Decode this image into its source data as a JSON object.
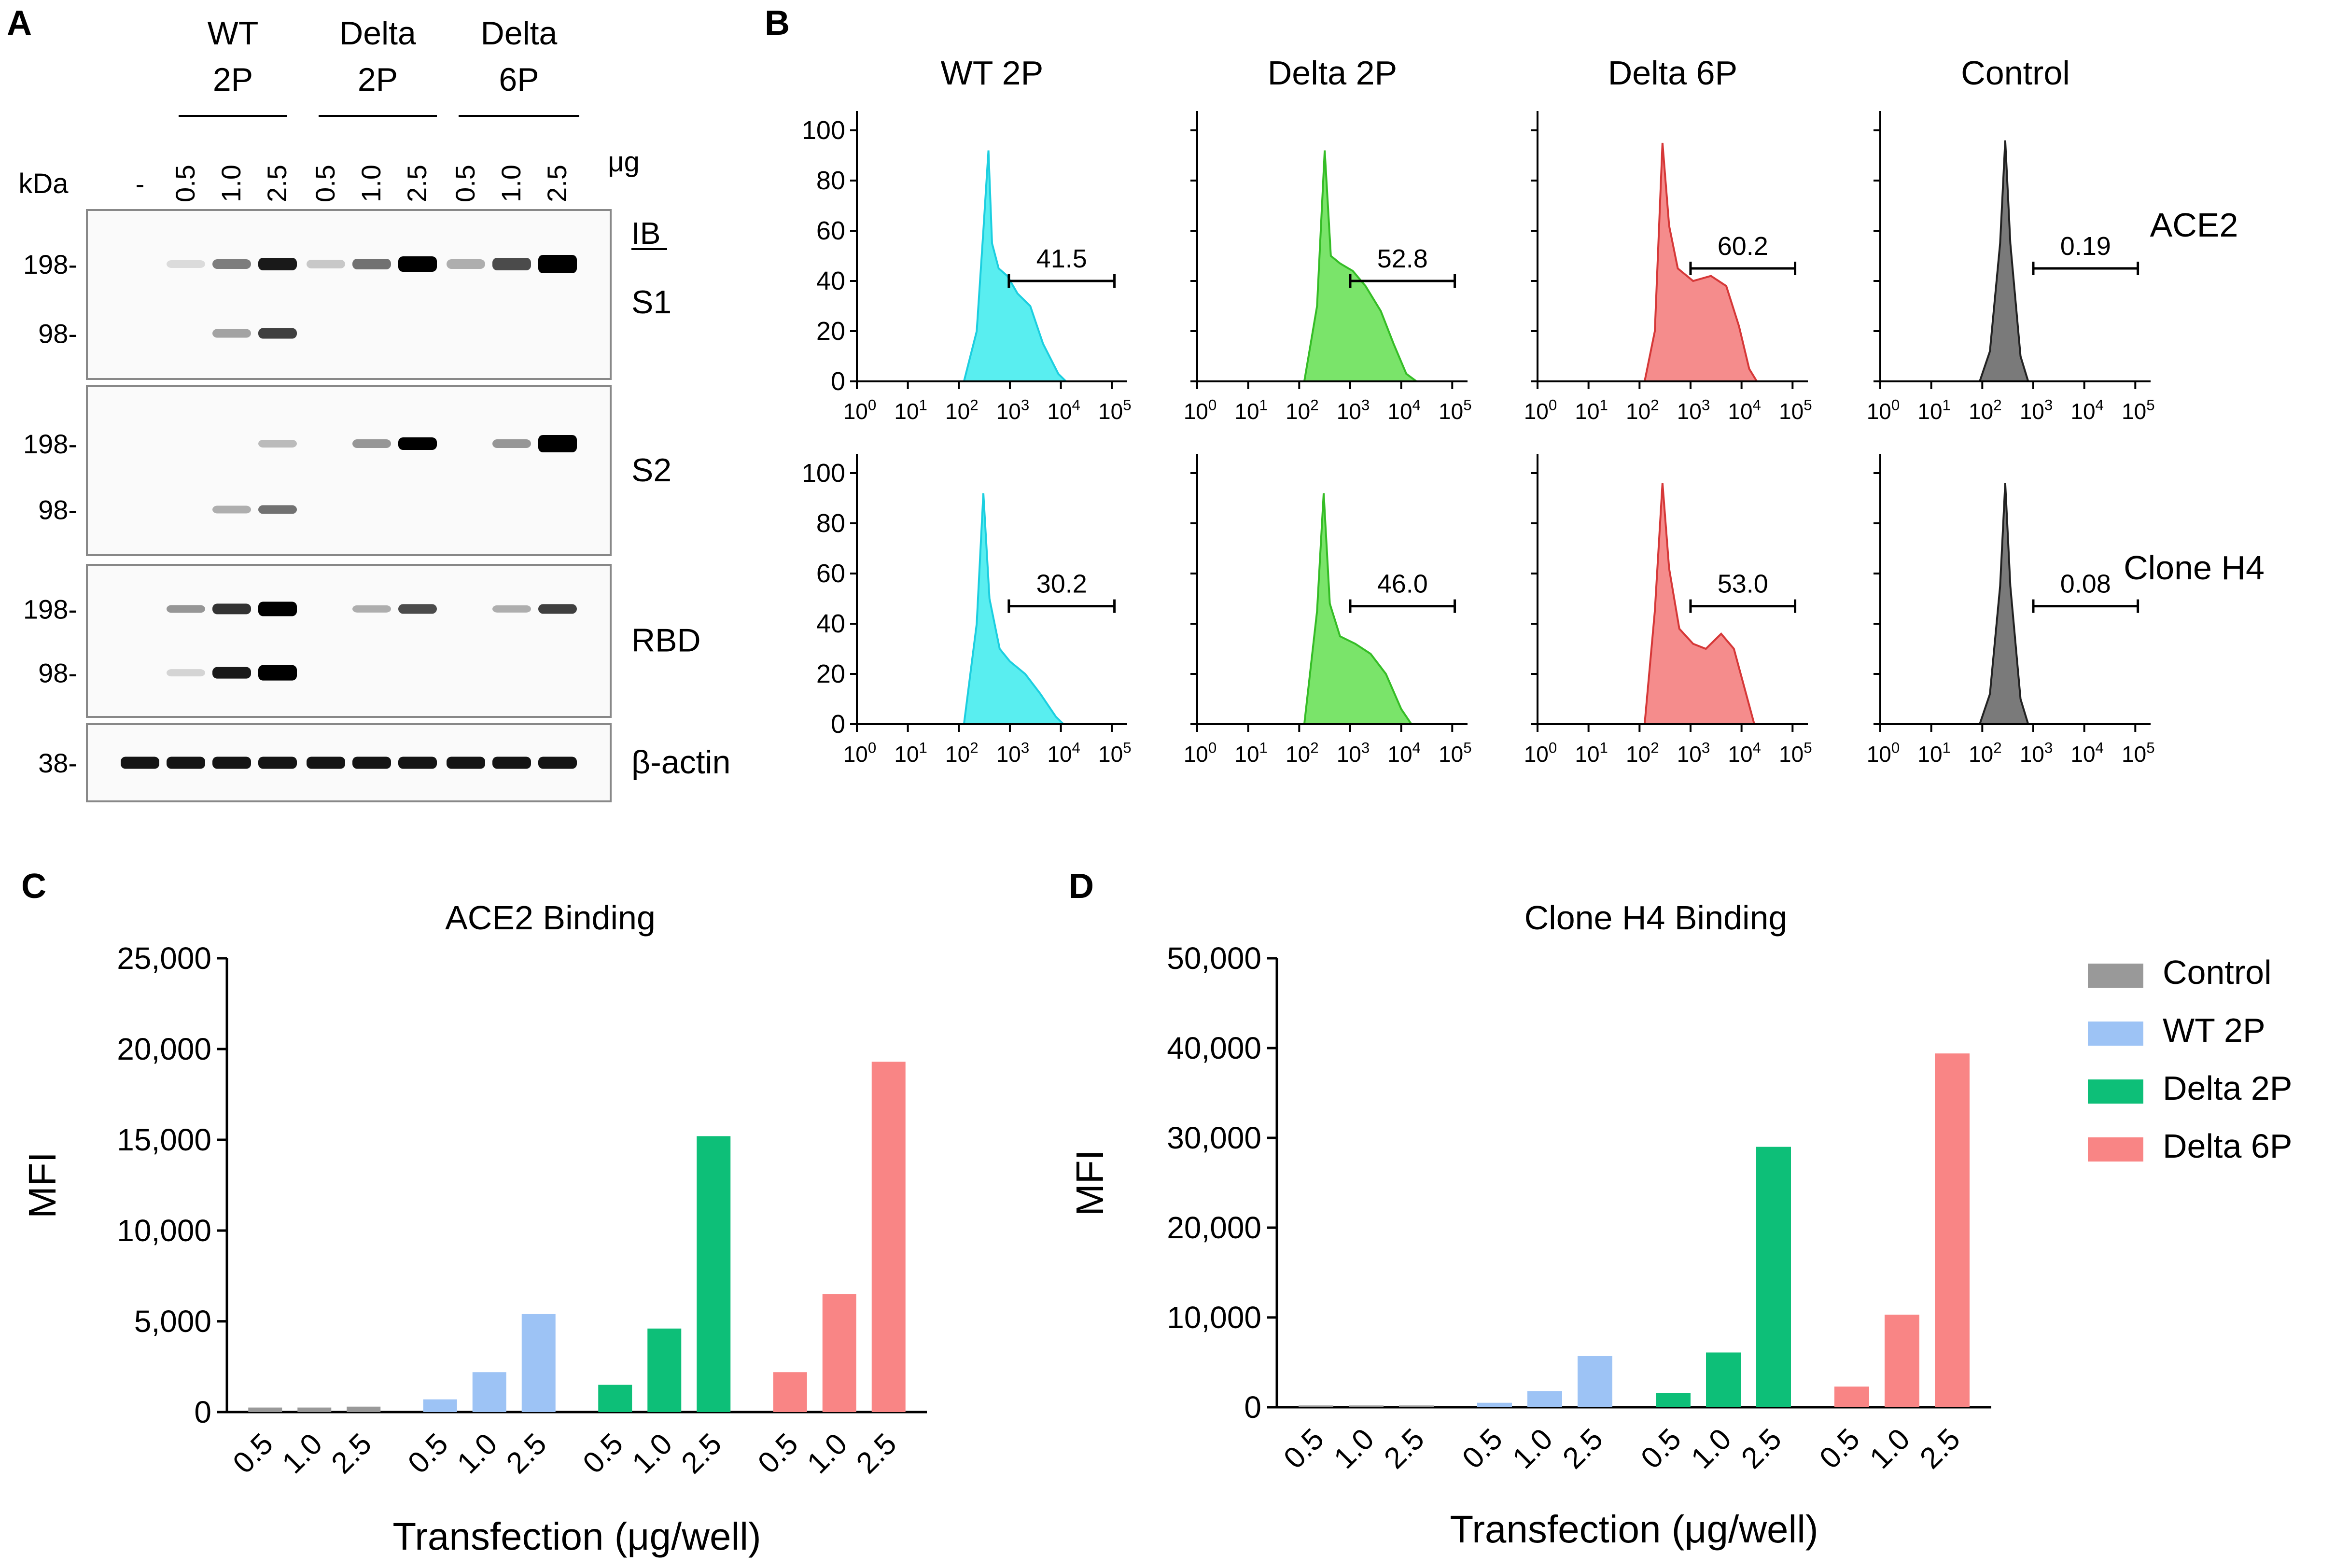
{
  "panel_labels": {
    "a": "A",
    "b": "B",
    "c": "C",
    "d": "D"
  },
  "colors": {
    "control": "#999999",
    "wt2p": "#9dc3f5",
    "delta2p": "#0dbf78",
    "delta6p": "#f98585",
    "flow_wt": "#59eef0",
    "flow_wt_line": "#1ccfe0",
    "flow_delta2p": "#7ae46a",
    "flow_delta2p_line": "#35bd26",
    "flow_delta6p": "#f58c8c",
    "flow_delta6p_line": "#d63838",
    "flow_control": "#7a7a7a"
  },
  "western": {
    "groups": [
      {
        "line1": "WT",
        "line2": "2P"
      },
      {
        "line1": "Delta",
        "line2": "2P"
      },
      {
        "line1": "Delta",
        "line2": "6P"
      }
    ],
    "lane_neg": "-",
    "dose_labels": [
      "0.5",
      "1.0",
      "2.5",
      "0.5",
      "1.0",
      "2.5",
      "0.5",
      "1.0",
      "2.5"
    ],
    "unit": "μg",
    "kda_label": "kDa",
    "ib_label": "IB",
    "blots": [
      {
        "name": "S1",
        "markers": [
          "198-",
          "98-"
        ]
      },
      {
        "name": "S2",
        "markers": [
          "198-",
          "98-"
        ]
      },
      {
        "name": "RBD",
        "markers": [
          "198-",
          "98-"
        ]
      },
      {
        "name": "β-actin",
        "markers": [
          "38-"
        ]
      }
    ]
  },
  "chart_data": [
    {
      "type": "histogram",
      "panel": "B",
      "column_titles": [
        "WT 2P",
        "Delta 2P",
        "Delta 6P",
        "Control"
      ],
      "row_labels": [
        "ACE2",
        "Clone H4"
      ],
      "y_ticks": [
        "0",
        "20",
        "40",
        "60",
        "80",
        "100"
      ],
      "ylim": [
        0,
        100
      ],
      "x_scale": "log",
      "x_tick_exponents": [
        "0",
        "1",
        "2",
        "3",
        "4",
        "5"
      ],
      "gate_percentages": [
        [
          "41.5",
          "52.8",
          "60.2",
          "0.19"
        ],
        [
          "30.2",
          "46.0",
          "53.0",
          "0.08"
        ]
      ]
    },
    {
      "type": "bar",
      "panel": "C",
      "title": "ACE2 Binding",
      "ylabel": "MFI",
      "xlabel": "Transfection (μg/well)",
      "ylim": [
        0,
        25000
      ],
      "y_ticks": [
        "0",
        "5,000",
        "10,000",
        "15,000",
        "20,000",
        "25,000"
      ],
      "categories": [
        "0.5",
        "1.0",
        "2.5"
      ],
      "series": [
        {
          "name": "Control",
          "values": [
            250,
            250,
            300
          ]
        },
        {
          "name": "WT 2P",
          "values": [
            700,
            2200,
            5400
          ]
        },
        {
          "name": "Delta 2P",
          "values": [
            1500,
            4600,
            15200
          ]
        },
        {
          "name": "Delta 6P",
          "values": [
            2200,
            6500,
            19300
          ]
        }
      ]
    },
    {
      "type": "bar",
      "panel": "D",
      "title": "Clone H4 Binding",
      "ylabel": "MFI",
      "xlabel": "Transfection (μg/well)",
      "ylim": [
        0,
        50000
      ],
      "y_ticks": [
        "0",
        "10,000",
        "20,000",
        "30,000",
        "40,000",
        "50,000"
      ],
      "categories": [
        "0.5",
        "1.0",
        "2.5"
      ],
      "series": [
        {
          "name": "Control",
          "values": [
            200,
            200,
            200
          ]
        },
        {
          "name": "WT 2P",
          "values": [
            500,
            1800,
            5700
          ]
        },
        {
          "name": "Delta 2P",
          "values": [
            1600,
            6100,
            29000
          ]
        },
        {
          "name": "Delta 6P",
          "values": [
            2300,
            10300,
            39400
          ]
        }
      ],
      "legend": [
        "Control",
        "WT 2P",
        "Delta 2P",
        "Delta 6P"
      ]
    }
  ]
}
